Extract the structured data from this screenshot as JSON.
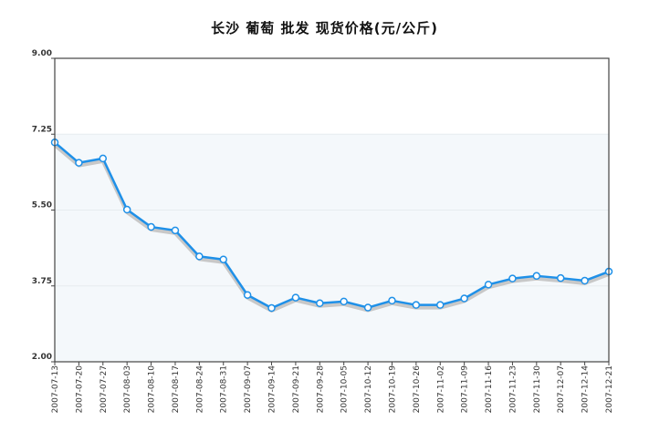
{
  "chart_data": {
    "type": "line",
    "title": "长沙 葡萄 批发 现货价格(元/公斤)",
    "xlabel": "",
    "ylabel": "",
    "ylim": [
      2.0,
      9.0
    ],
    "yticks": [
      "2.00",
      "3.75",
      "5.50",
      "7.25",
      "9.00"
    ],
    "categories": [
      "2007-07-13",
      "2007-07-20",
      "2007-07-27",
      "2007-08-03",
      "2007-08-10",
      "2007-08-17",
      "2007-08-24",
      "2007-08-31",
      "2007-09-07",
      "2007-09-14",
      "2007-09-21",
      "2007-09-28",
      "2007-10-05",
      "2007-10-12",
      "2007-10-19",
      "2007-10-26",
      "2007-11-02",
      "2007-11-09",
      "2007-11-16",
      "2007-11-23",
      "2007-11-30",
      "2007-12-07",
      "2007-12-14",
      "2007-12-21"
    ],
    "series": [
      {
        "values": [
          7.06,
          6.59,
          6.69,
          5.51,
          5.11,
          5.03,
          4.43,
          4.36,
          3.54,
          3.24,
          3.48,
          3.35,
          3.39,
          3.25,
          3.41,
          3.31,
          3.31,
          3.46,
          3.78,
          3.92,
          3.98,
          3.93,
          3.87,
          4.08
        ]
      }
    ],
    "grid": true,
    "legend": "none",
    "colors": {
      "line": "#1e90e8",
      "shadow": "#c8c8c8",
      "marker_fill": "#ffffff",
      "band": "#f4f8fb",
      "axis": "#444444"
    }
  }
}
